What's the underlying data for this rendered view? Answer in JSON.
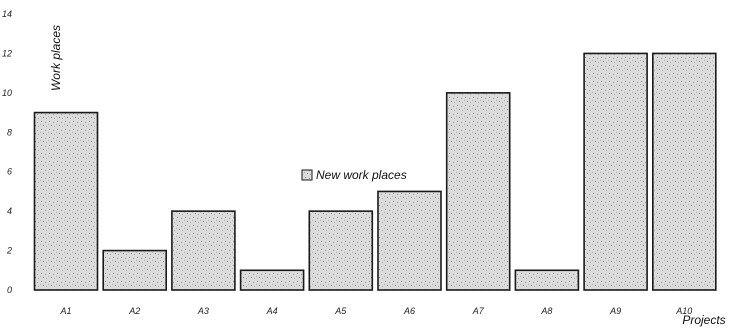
{
  "chart_data": {
    "type": "bar",
    "categories": [
      "A1",
      "A2",
      "A3",
      "A4",
      "A5",
      "A6",
      "A7",
      "A8",
      "A9",
      "A10"
    ],
    "series": [
      {
        "name": "New work places",
        "values": [
          9,
          2,
          4,
          1,
          4,
          5,
          10,
          1,
          12,
          12
        ]
      }
    ],
    "title": "",
    "xlabel": "Projects",
    "ylabel": "Work places",
    "ylim": [
      0,
      14
    ],
    "yticks": [
      "0",
      "2",
      "4",
      "6",
      "8",
      "10",
      "12",
      "14"
    ],
    "grid": false,
    "legend": "center",
    "colors": {
      "bar_fill": "#d9d9d9",
      "bar_stroke": "#1a1a1a",
      "legend_fill": "#cfcfcf"
    }
  }
}
